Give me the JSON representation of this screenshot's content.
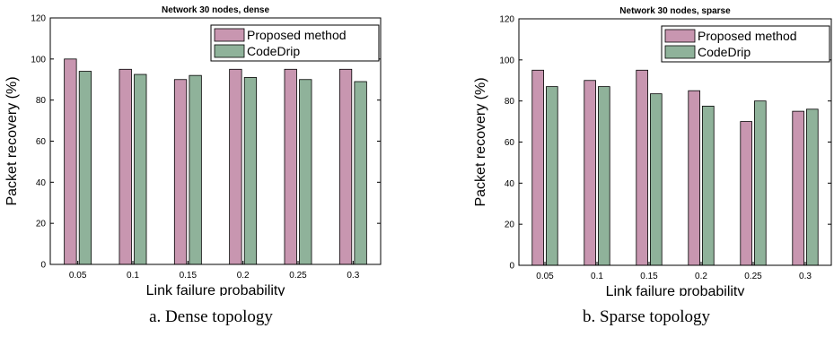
{
  "colors": {
    "proposed": "#c896b0",
    "codedrip": "#8fb29a"
  },
  "chart_data": [
    {
      "type": "bar",
      "title": "Network 30 nodes, dense",
      "xlabel": "Link failure probability",
      "ylabel": "Packet recovery (%)",
      "ylim": [
        0,
        120
      ],
      "yticks": [
        "0",
        "20",
        "40",
        "60",
        "80",
        "100",
        "120"
      ],
      "categories": [
        "0.05",
        "0.1",
        "0.15",
        "0.2",
        "0.25",
        "0.3"
      ],
      "series": [
        {
          "name": "Proposed method",
          "values": [
            100,
            95,
            90,
            95,
            95,
            95
          ]
        },
        {
          "name": "CodeDrip",
          "values": [
            94,
            92.5,
            92,
            91,
            90,
            89
          ]
        }
      ],
      "legend": "top-right",
      "grid": false,
      "caption": "a.  Dense topology"
    },
    {
      "type": "bar",
      "title": "Network 30 nodes, sparse",
      "xlabel": "Link failure probability",
      "ylabel": "Packet recovery (%)",
      "ylim": [
        0,
        120
      ],
      "yticks": [
        "0",
        "20",
        "40",
        "60",
        "80",
        "100",
        "120"
      ],
      "categories": [
        "0.05",
        "0.1",
        "0.15",
        "0.2",
        "0.25",
        "0.3"
      ],
      "series": [
        {
          "name": "Proposed method",
          "values": [
            95,
            90,
            95,
            85,
            70,
            75
          ]
        },
        {
          "name": "CodeDrip",
          "values": [
            87,
            87,
            83.5,
            77.5,
            80,
            76
          ]
        }
      ],
      "legend": "top-right",
      "grid": false,
      "caption": "b. Sparse topology"
    }
  ]
}
